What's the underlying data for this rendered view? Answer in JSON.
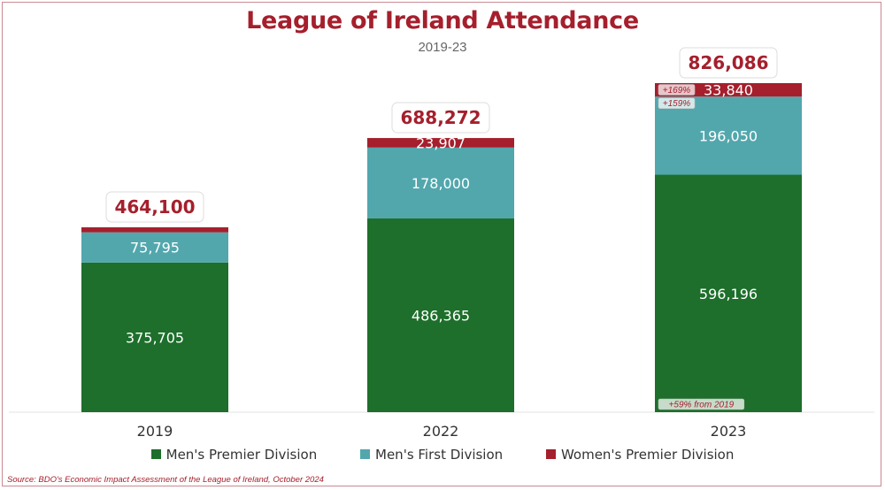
{
  "chart_data": {
    "type": "bar",
    "stacked": true,
    "title": "League of Ireland Attendance",
    "subtitle": "2019-23",
    "categories": [
      "2019",
      "2022",
      "2023"
    ],
    "series": [
      {
        "name": "Men's Premier Division",
        "color": "#1d6f2b",
        "values": [
          375705,
          486365,
          596196
        ]
      },
      {
        "name": "Men's First Division",
        "color": "#52a7ad",
        "values": [
          75795,
          178000,
          196050
        ]
      },
      {
        "name": "Women's Premier Division",
        "color": "#a51f2c",
        "values": [
          12600,
          23907,
          33840
        ]
      }
    ],
    "segment_labels": [
      [
        "375,705",
        "75,795",
        ""
      ],
      [
        "486,365",
        "178,000",
        "23,907"
      ],
      [
        "596,196",
        "196,050",
        "33,840"
      ]
    ],
    "totals": [
      "464,100",
      "688,272",
      "826,086"
    ],
    "total_values": [
      464100,
      688272,
      826086
    ],
    "annotations": [
      {
        "category": "2023",
        "series": "Women's Premier Division",
        "text": "+169%"
      },
      {
        "category": "2023",
        "series": "Men's First Division",
        "text": "+159%"
      },
      {
        "category": "2023",
        "series": "Men's Premier Division",
        "text": "+59% from 2019"
      }
    ],
    "ylim": [
      0,
      826086
    ],
    "legend_position": "bottom-center",
    "source": "Source: BDO's Economic Impact Assessment of the League of Ireland, October 2024"
  }
}
